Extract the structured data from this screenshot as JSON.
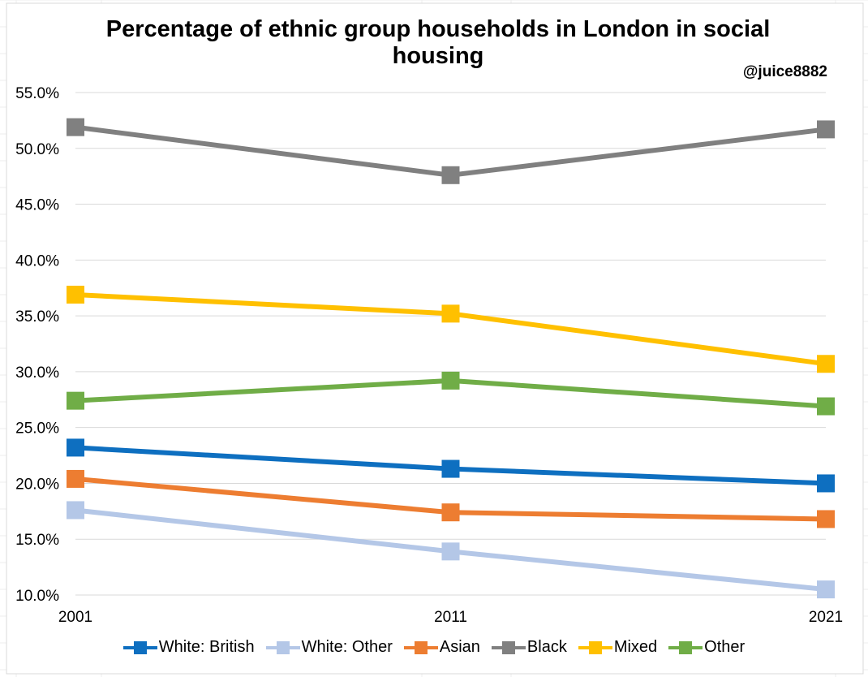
{
  "chart_data": {
    "type": "line",
    "title": "Percentage of ethnic group households in London in social housing",
    "annotation": "@juice8882",
    "categories": [
      "2001",
      "2011",
      "2021"
    ],
    "ylim": [
      10.0,
      55.0
    ],
    "ystep": 5.0,
    "ytick_labels": [
      "55.0%",
      "50.0%",
      "45.0%",
      "40.0%",
      "35.0%",
      "30.0%",
      "25.0%",
      "20.0%",
      "15.0%",
      "10.0%"
    ],
    "grid": true,
    "legend_position": "bottom",
    "series": [
      {
        "name": "White: British",
        "color": "#0E6FC0",
        "values": [
          23.2,
          21.3,
          20.0
        ]
      },
      {
        "name": "White: Other",
        "color": "#B4C7E7",
        "values": [
          17.6,
          13.9,
          10.5
        ]
      },
      {
        "name": "Asian",
        "color": "#ED7D31",
        "values": [
          20.4,
          17.4,
          16.8
        ]
      },
      {
        "name": "Black",
        "color": "#808080",
        "values": [
          51.9,
          47.6,
          51.7
        ]
      },
      {
        "name": "Mixed",
        "color": "#FFC000",
        "values": [
          36.9,
          35.2,
          30.7
        ]
      },
      {
        "name": "Other",
        "color": "#70AD47",
        "values": [
          27.4,
          29.2,
          26.9
        ]
      }
    ]
  }
}
